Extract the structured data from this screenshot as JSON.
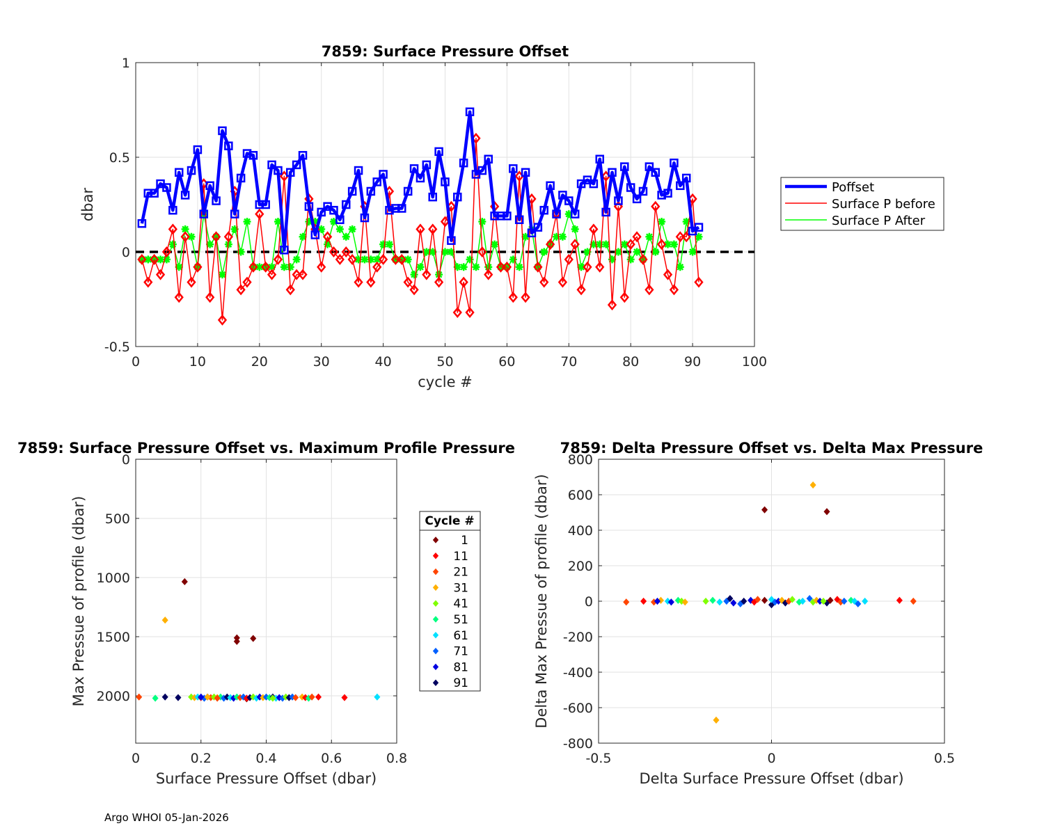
{
  "footer": "Argo WHOI 05-Jan-2026",
  "colors": {
    "poffset": "#0000ff",
    "before": "#ff0000",
    "after": "#00ff00",
    "zero_line": "#000000",
    "cycle_colormap": [
      "#800000",
      "#ff0000",
      "#ff4500",
      "#ffb000",
      "#80ff00",
      "#00ff80",
      "#00e0ff",
      "#0060ff",
      "#0000e0",
      "#000060"
    ]
  },
  "chart_data": [
    {
      "id": "p1",
      "type": "line",
      "title": "7859: Surface Pressure Offset",
      "xlabel": "cycle #",
      "ylabel": "dbar",
      "xlim": [
        0,
        100
      ],
      "ylim": [
        -0.5,
        1
      ],
      "xticks": [
        0,
        10,
        20,
        30,
        40,
        50,
        60,
        70,
        80,
        90,
        100
      ],
      "xtick_labels": [
        "0",
        "10",
        "20",
        "30",
        "40",
        "50",
        "60",
        "70",
        "80",
        "90",
        "100"
      ],
      "yticks": [
        -0.5,
        0,
        0.5,
        1
      ],
      "ytick_labels": [
        "-0.5",
        "0",
        "0.5",
        "1"
      ],
      "grid": true,
      "legend_position": "right",
      "zero_line": 0,
      "x": [
        1,
        2,
        3,
        4,
        5,
        6,
        7,
        8,
        9,
        10,
        11,
        12,
        13,
        14,
        15,
        16,
        17,
        18,
        19,
        20,
        21,
        22,
        23,
        24,
        25,
        26,
        27,
        28,
        29,
        30,
        31,
        32,
        33,
        34,
        35,
        36,
        37,
        38,
        39,
        40,
        41,
        42,
        43,
        44,
        45,
        46,
        47,
        48,
        49,
        50,
        51,
        52,
        53,
        54,
        55,
        56,
        57,
        58,
        59,
        60,
        61,
        62,
        63,
        64,
        65,
        66,
        67,
        68,
        69,
        70,
        71,
        72,
        73,
        74,
        75,
        76,
        77,
        78,
        79,
        80,
        81,
        82,
        83,
        84,
        85,
        86,
        87,
        88,
        89,
        90,
        91
      ],
      "series": [
        {
          "name": "Poffset",
          "color": "#0000ff",
          "values": [
            0.15,
            0.31,
            0.31,
            0.36,
            0.34,
            0.22,
            0.42,
            0.3,
            0.43,
            0.54,
            0.2,
            0.35,
            0.27,
            0.64,
            0.56,
            0.2,
            0.39,
            0.52,
            0.51,
            0.25,
            0.25,
            0.46,
            0.43,
            0.01,
            0.42,
            0.46,
            0.51,
            0.24,
            0.09,
            0.21,
            0.24,
            0.22,
            0.17,
            0.25,
            0.32,
            0.43,
            0.18,
            0.32,
            0.37,
            0.41,
            0.22,
            0.23,
            0.23,
            0.32,
            0.44,
            0.39,
            0.46,
            0.29,
            0.53,
            0.37,
            0.06,
            0.29,
            0.47,
            0.74,
            0.41,
            0.43,
            0.49,
            0.19,
            0.19,
            0.19,
            0.44,
            0.17,
            0.42,
            0.1,
            0.13,
            0.22,
            0.35,
            0.2,
            0.3,
            0.27,
            0.2,
            0.36,
            0.38,
            0.36,
            0.49,
            0.21,
            0.42,
            0.27,
            0.45,
            0.34,
            0.28,
            0.32,
            0.45,
            0.42,
            0.3,
            0.31,
            0.47,
            0.35,
            0.39,
            0.11,
            0.13
          ]
        },
        {
          "name": "Surface P before",
          "color": "#ff0000",
          "values": [
            -0.04,
            -0.16,
            -0.04,
            -0.12,
            0.0,
            0.12,
            -0.24,
            0.08,
            -0.16,
            -0.08,
            0.36,
            -0.24,
            0.08,
            -0.36,
            0.08,
            0.32,
            -0.2,
            -0.16,
            -0.08,
            0.2,
            -0.08,
            -0.12,
            -0.04,
            0.4,
            -0.2,
            -0.12,
            -0.12,
            0.28,
            0.12,
            -0.08,
            0.08,
            0.0,
            -0.04,
            0.0,
            -0.04,
            -0.16,
            0.24,
            -0.16,
            -0.08,
            -0.04,
            0.32,
            -0.04,
            -0.04,
            -0.16,
            -0.2,
            0.12,
            -0.12,
            0.12,
            -0.16,
            0.16,
            0.24,
            -0.32,
            -0.16,
            -0.32,
            0.6,
            0.0,
            -0.12,
            0.24,
            -0.08,
            -0.08,
            -0.24,
            0.4,
            -0.24,
            0.28,
            -0.08,
            -0.16,
            0.04,
            0.2,
            -0.16,
            -0.04,
            0.04,
            -0.2,
            -0.08,
            0.12,
            -0.08,
            0.4,
            -0.28,
            0.24,
            -0.24,
            0.04,
            0.08,
            -0.04,
            -0.2,
            0.24,
            0.04,
            -0.12,
            -0.2,
            0.08,
            0.08,
            0.28,
            -0.16
          ]
        },
        {
          "name": "Surface P After",
          "color": "#00ff00",
          "values": [
            -0.04,
            -0.04,
            -0.04,
            -0.04,
            -0.04,
            0.04,
            -0.08,
            0.12,
            0.08,
            -0.08,
            0.2,
            0.04,
            0.08,
            -0.12,
            0.04,
            0.12,
            0.0,
            0.16,
            -0.08,
            -0.08,
            -0.08,
            -0.08,
            0.16,
            -0.08,
            -0.08,
            -0.04,
            0.08,
            0.16,
            0.16,
            0.12,
            0.04,
            0.16,
            0.12,
            0.08,
            0.12,
            -0.04,
            -0.04,
            -0.04,
            -0.04,
            0.04,
            0.04,
            -0.04,
            -0.04,
            -0.04,
            -0.12,
            -0.08,
            0.0,
            0.0,
            -0.12,
            0.0,
            0.0,
            -0.08,
            -0.08,
            -0.04,
            -0.08,
            0.16,
            -0.08,
            0.04,
            -0.08,
            -0.08,
            -0.04,
            -0.08,
            0.08,
            0.12,
            -0.08,
            0.0,
            0.04,
            0.08,
            0.08,
            0.2,
            0.12,
            -0.08,
            0.0,
            0.04,
            0.04,
            0.04,
            -0.04,
            0.0,
            0.04,
            -0.04,
            0.0,
            -0.04,
            0.08,
            0.0,
            0.16,
            0.04,
            0.04,
            -0.08,
            0.16,
            0.0,
            0.08
          ]
        }
      ]
    },
    {
      "id": "p2",
      "type": "scatter",
      "title": "7859: Surface Pressure Offset vs. Maximum Profile Pressure",
      "xlabel": "Surface Pressure Offset (dbar)",
      "ylabel": "Max Pressue of profile (dbar)",
      "xlim": [
        0,
        0.8
      ],
      "ylim": [
        0,
        2400
      ],
      "y_reversed": true,
      "xticks": [
        0,
        0.2,
        0.4,
        0.6,
        0.8
      ],
      "xtick_labels": [
        "0",
        "0.2",
        "0.4",
        "0.6",
        "0.8"
      ],
      "yticks": [
        0,
        500,
        1000,
        1500,
        2000
      ],
      "ytick_labels": [
        "0",
        "500",
        "1000",
        "1500",
        "2000"
      ],
      "grid": true,
      "legend_title": "Cycle #",
      "legend_entries": [
        "1",
        "11",
        "21",
        "31",
        "41",
        "51",
        "61",
        "71",
        "81",
        "91"
      ],
      "points": [
        [
          0.15,
          1035,
          0
        ],
        [
          0.31,
          1510,
          0
        ],
        [
          0.31,
          1540,
          0
        ],
        [
          0.36,
          1515,
          0
        ],
        [
          0.34,
          2025,
          0
        ],
        [
          0.09,
          1360,
          3
        ],
        [
          0.01,
          2010,
          2
        ],
        [
          0.06,
          2020,
          5
        ],
        [
          0.09,
          2010,
          9
        ],
        [
          0.13,
          2015,
          9
        ],
        [
          0.17,
          2010,
          4
        ],
        [
          0.18,
          2015,
          3
        ],
        [
          0.19,
          2010,
          6
        ],
        [
          0.2,
          2015,
          1
        ],
        [
          0.21,
          2020,
          7
        ],
        [
          0.22,
          2010,
          8
        ],
        [
          0.23,
          2015,
          2
        ],
        [
          0.24,
          2010,
          4
        ],
        [
          0.25,
          2015,
          3
        ],
        [
          0.26,
          2010,
          5
        ],
        [
          0.27,
          2020,
          7
        ],
        [
          0.28,
          2010,
          9
        ],
        [
          0.29,
          2015,
          6
        ],
        [
          0.3,
          2020,
          8
        ],
        [
          0.31,
          2010,
          5
        ],
        [
          0.32,
          2015,
          2
        ],
        [
          0.33,
          2010,
          7
        ],
        [
          0.34,
          2020,
          1
        ],
        [
          0.35,
          2015,
          9
        ],
        [
          0.36,
          2010,
          4
        ],
        [
          0.37,
          2020,
          6
        ],
        [
          0.38,
          2010,
          8
        ],
        [
          0.39,
          2015,
          3
        ],
        [
          0.4,
          2010,
          7
        ],
        [
          0.41,
          2015,
          5
        ],
        [
          0.42,
          2010,
          9
        ],
        [
          0.43,
          2020,
          6
        ],
        [
          0.44,
          2015,
          8
        ],
        [
          0.45,
          2020,
          7
        ],
        [
          0.46,
          2010,
          4
        ],
        [
          0.47,
          2015,
          9
        ],
        [
          0.48,
          2010,
          7
        ],
        [
          0.49,
          2015,
          2
        ],
        [
          0.51,
          2010,
          3
        ],
        [
          0.52,
          2015,
          1
        ],
        [
          0.53,
          2020,
          5
        ],
        [
          0.54,
          2010,
          2
        ],
        [
          0.56,
          2010,
          1
        ],
        [
          0.64,
          2015,
          1
        ],
        [
          0.74,
          2010,
          6
        ],
        [
          0.22,
          2010,
          3
        ],
        [
          0.25,
          2020,
          2
        ],
        [
          0.42,
          2020,
          4
        ],
        [
          0.2,
          2010,
          8
        ]
      ]
    },
    {
      "id": "p3",
      "type": "scatter",
      "title": "7859: Delta Pressure Offset vs. Delta Max Pressure",
      "xlabel": "Delta Surface Pressure Offset (dbar)",
      "ylabel": "Delta Max Pressue of profile (dbar)",
      "xlim": [
        -0.5,
        0.5
      ],
      "ylim": [
        -800,
        800
      ],
      "xticks": [
        -0.5,
        0,
        0.5
      ],
      "xtick_labels": [
        "-0.5",
        "0",
        "0.5"
      ],
      "yticks": [
        -800,
        -600,
        -400,
        -200,
        0,
        200,
        400,
        600,
        800
      ],
      "ytick_labels": [
        "-800",
        "-600",
        "-400",
        "-200",
        "0",
        "200",
        "400",
        "600",
        "800"
      ],
      "grid": true,
      "points": [
        [
          -0.02,
          515,
          0
        ],
        [
          0.16,
          505,
          0
        ],
        [
          0.12,
          655,
          3
        ],
        [
          -0.16,
          -670,
          3
        ],
        [
          -0.42,
          -5,
          2
        ],
        [
          -0.37,
          0,
          1
        ],
        [
          -0.34,
          -5,
          2
        ],
        [
          -0.32,
          5,
          3
        ],
        [
          -0.3,
          0,
          6
        ],
        [
          -0.29,
          -5,
          8
        ],
        [
          -0.27,
          5,
          5
        ],
        [
          -0.26,
          0,
          4
        ],
        [
          -0.25,
          -5,
          3
        ],
        [
          -0.19,
          0,
          4
        ],
        [
          -0.17,
          5,
          5
        ],
        [
          -0.15,
          -5,
          6
        ],
        [
          -0.13,
          0,
          7
        ],
        [
          -0.12,
          15,
          9
        ],
        [
          -0.11,
          -10,
          8
        ],
        [
          -0.09,
          -15,
          7
        ],
        [
          -0.08,
          0,
          9
        ],
        [
          -0.06,
          5,
          8
        ],
        [
          -0.05,
          -5,
          1
        ],
        [
          -0.04,
          10,
          2
        ],
        [
          -0.02,
          5,
          0
        ],
        [
          0.0,
          -20,
          9
        ],
        [
          0.0,
          10,
          6
        ],
        [
          0.01,
          -5,
          7
        ],
        [
          0.02,
          0,
          8
        ],
        [
          0.03,
          5,
          3
        ],
        [
          0.04,
          -10,
          9
        ],
        [
          0.05,
          0,
          2
        ],
        [
          0.06,
          10,
          4
        ],
        [
          0.08,
          -5,
          5
        ],
        [
          0.09,
          0,
          6
        ],
        [
          0.11,
          15,
          7
        ],
        [
          0.12,
          -5,
          4
        ],
        [
          0.13,
          5,
          3
        ],
        [
          0.14,
          0,
          8
        ],
        [
          0.16,
          -10,
          9
        ],
        [
          0.17,
          5,
          0
        ],
        [
          0.19,
          10,
          1
        ],
        [
          0.2,
          -5,
          2
        ],
        [
          0.21,
          0,
          7
        ],
        [
          0.23,
          5,
          5
        ],
        [
          0.24,
          0,
          6
        ],
        [
          0.25,
          -15,
          7
        ],
        [
          0.27,
          0,
          6
        ],
        [
          0.37,
          5,
          1
        ],
        [
          0.41,
          0,
          2
        ],
        [
          -0.33,
          0,
          8
        ],
        [
          0.15,
          0,
          4
        ]
      ]
    }
  ]
}
